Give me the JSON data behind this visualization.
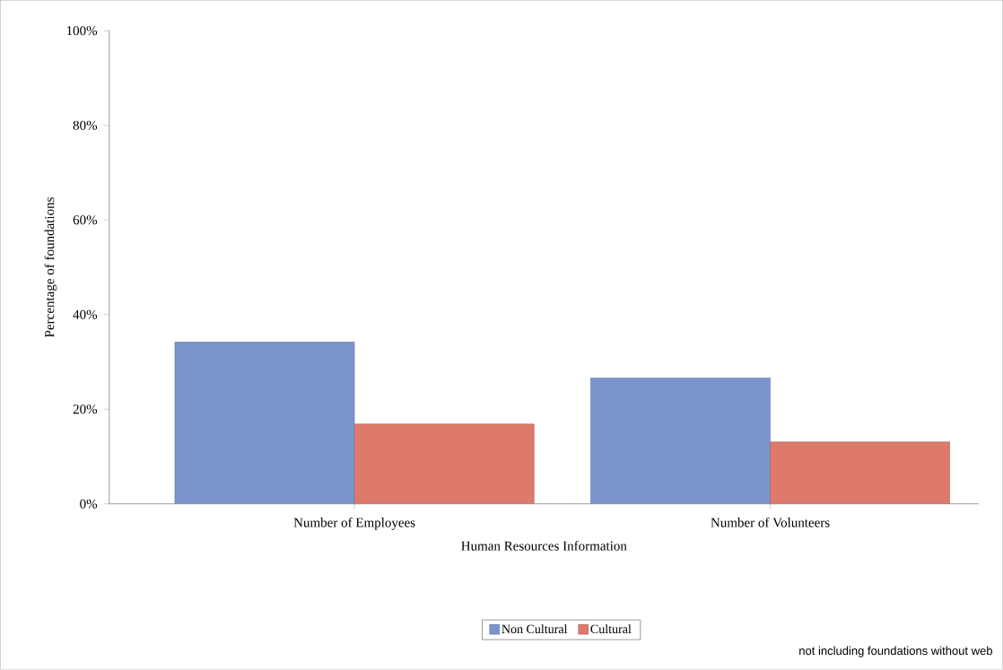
{
  "chart_data": {
    "type": "bar",
    "xlabel": "Human Resources Information",
    "ylabel": "Percentage of foundations",
    "categories": [
      "Number of Employees",
      "Number of Volunteers"
    ],
    "series": [
      {
        "name": "Non Cultural",
        "color": "#7b94cc",
        "values": [
          34.2,
          26.6
        ]
      },
      {
        "name": "Cultural",
        "color": "#dd7a6b",
        "values": [
          16.9,
          13.1
        ]
      }
    ],
    "ylim": [
      0,
      100
    ],
    "yticks": [
      {
        "value": 0,
        "label": "0%"
      },
      {
        "value": 20,
        "label": "20%"
      },
      {
        "value": 40,
        "label": "40%"
      },
      {
        "value": 60,
        "label": "60%"
      },
      {
        "value": 80,
        "label": "80%"
      },
      {
        "value": 100,
        "label": "100%"
      }
    ],
    "legend": "bottom",
    "annotations": [
      "not including foundations without web"
    ]
  }
}
